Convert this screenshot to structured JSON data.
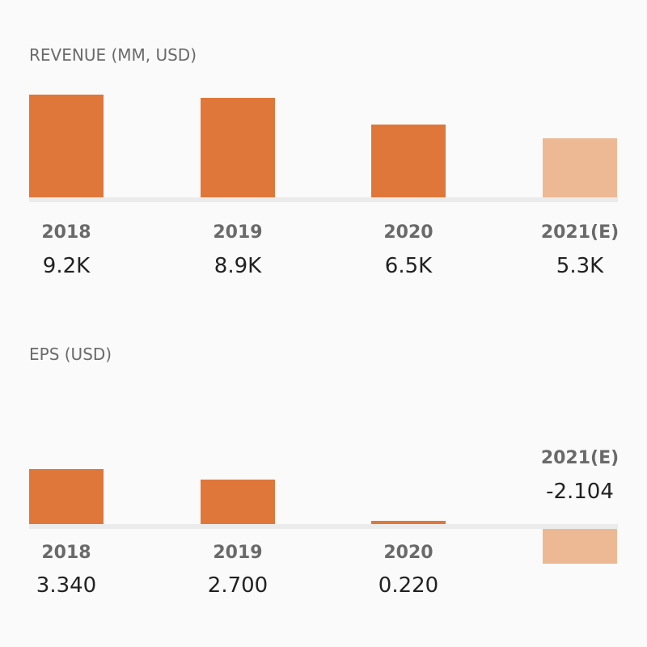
{
  "chart_data": [
    {
      "type": "bar",
      "title": "REVENUE (MM, USD)",
      "categories": [
        "2018",
        "2019",
        "2020",
        "2021(E)"
      ],
      "values": [
        9.2,
        8.9,
        6.5,
        5.3
      ],
      "value_labels": [
        "9.2K",
        "8.9K",
        "6.5K",
        "5.3K"
      ],
      "estimated": [
        false,
        false,
        false,
        true
      ]
    },
    {
      "type": "bar",
      "title": "EPS (USD)",
      "categories": [
        "2018",
        "2019",
        "2020",
        "2021(E)"
      ],
      "values": [
        3.34,
        2.7,
        0.22,
        -2.104
      ],
      "value_labels": [
        "3.340",
        "2.700",
        "0.220",
        "-2.104"
      ],
      "estimated": [
        false,
        false,
        false,
        true
      ]
    }
  ],
  "colors": {
    "actual": "#e0773a",
    "estimate": "#edb994"
  }
}
